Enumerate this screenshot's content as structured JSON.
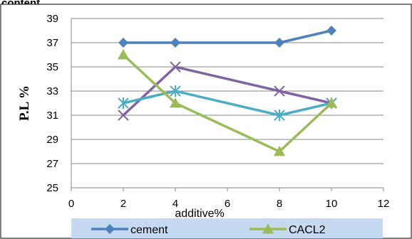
{
  "chart_data": {
    "type": "line",
    "title": "content",
    "xlabel": "additive%",
    "ylabel": "P.L %",
    "xlim": [
      0,
      12
    ],
    "ylim": [
      25,
      39
    ],
    "xticks": [
      "0",
      "2",
      "4",
      "6",
      "8",
      "10",
      "12"
    ],
    "yticks": [
      "25",
      "27",
      "29",
      "31",
      "33",
      "35",
      "37",
      "39"
    ],
    "grid": "horizontal",
    "legend": "bottom",
    "series": [
      {
        "name": "cement",
        "color": "#4F81BD",
        "marker": "diamond",
        "points": [
          [
            2,
            37
          ],
          [
            4,
            37
          ],
          [
            8,
            37
          ],
          [
            10,
            38
          ]
        ]
      },
      {
        "name": "CACL2",
        "color": "#9BBB59",
        "marker": "triangle",
        "points": [
          [
            2,
            36
          ],
          [
            4,
            32
          ],
          [
            8,
            28
          ],
          [
            10,
            32
          ]
        ]
      },
      {
        "name": "",
        "color": "#8064A2",
        "marker": "x",
        "points": [
          [
            2,
            31
          ],
          [
            4,
            35
          ],
          [
            8,
            33
          ],
          [
            10,
            32
          ]
        ]
      },
      {
        "name": "",
        "color": "#4BACC6",
        "marker": "star",
        "points": [
          [
            2,
            32
          ],
          [
            4,
            33
          ],
          [
            8,
            31
          ],
          [
            10,
            32
          ]
        ]
      }
    ]
  }
}
